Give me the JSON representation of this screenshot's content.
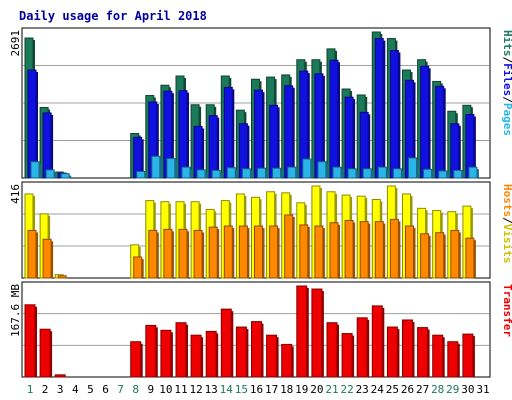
{
  "chart_data": {
    "type": "bar",
    "title": "Daily usage for April 2018",
    "categories": [
      "1",
      "2",
      "3",
      "4",
      "5",
      "6",
      "7",
      "8",
      "9",
      "10",
      "11",
      "12",
      "13",
      "14",
      "15",
      "16",
      "17",
      "18",
      "19",
      "20",
      "21",
      "22",
      "23",
      "24",
      "25",
      "26",
      "27",
      "28",
      "29",
      "30",
      "31"
    ],
    "weekend_days": [
      "1",
      "7",
      "8",
      "14",
      "15",
      "21",
      "22",
      "28",
      "29"
    ],
    "panels": {
      "hits_files_pages": {
        "max_label": "2691",
        "ylim": [
          0,
          2691
        ],
        "series": [
          {
            "name": "Hits",
            "color": "#1b7a58",
            "values": [
              2580,
              1300,
              110,
              0,
              0,
              0,
              0,
              820,
              1520,
              1710,
              1880,
              1350,
              1350,
              1880,
              1250,
              1820,
              1860,
              1900,
              2180,
              2180,
              2380,
              1640,
              1530,
              2691,
              2570,
              1990,
              2180,
              1780,
              1230,
              1340,
              0
            ]
          },
          {
            "name": "Files",
            "color": "#1010e0",
            "values": [
              1990,
              1200,
              90,
              0,
              0,
              0,
              0,
              750,
              1400,
              1600,
              1610,
              950,
              1150,
              1670,
              1000,
              1620,
              1340,
              1700,
              1970,
              1920,
              2170,
              1490,
              1210,
              2570,
              2350,
              1800,
              2060,
              1690,
              1000,
              1170,
              0
            ]
          },
          {
            "name": "Pages",
            "color": "#2ab4e8",
            "values": [
              300,
              150,
              80,
              0,
              0,
              0,
              0,
              120,
              400,
              360,
              200,
              150,
              140,
              190,
              170,
              180,
              180,
              200,
              350,
              300,
              200,
              170,
              170,
              200,
              170,
              370,
              160,
              130,
              140,
              200,
              0
            ]
          }
        ],
        "side_label": [
          "Hits",
          "Files",
          "Pages"
        ]
      },
      "hosts_visits": {
        "max_label": "416",
        "ylim": [
          0,
          416
        ],
        "series": [
          {
            "name": "Visits",
            "color": "#ffff00",
            "values": [
              380,
              290,
              15,
              0,
              0,
              0,
              0,
              150,
              350,
              345,
              345,
              345,
              310,
              350,
              380,
              365,
              390,
              385,
              340,
              416,
              390,
              375,
              370,
              355,
              416,
              380,
              315,
              305,
              300,
              325,
              0
            ]
          },
          {
            "name": "Hosts",
            "color": "#ff8800",
            "values": [
              215,
              175,
              10,
              0,
              0,
              0,
              0,
              95,
              215,
              220,
              220,
              215,
              230,
              235,
              235,
              235,
              235,
              285,
              240,
              235,
              250,
              260,
              255,
              255,
              265,
              235,
              200,
              205,
              215,
              180,
              0
            ]
          }
        ],
        "side_label": [
          "Hosts",
          "Visits"
        ]
      },
      "transfer": {
        "max_label": "167.6 MB",
        "ylim": [
          0,
          167.6
        ],
        "series": [
          {
            "name": "Transfer",
            "color": "#ee0000",
            "values": [
              133,
              88,
              4,
              0,
              0,
              0,
              0,
              65,
              95,
              86,
              100,
              77,
              84,
              125,
              92,
              102,
              77,
              60,
              167.6,
              162,
              100,
              80,
              109,
              131,
              92,
              105,
              91,
              77,
              65,
              79,
              0
            ]
          }
        ],
        "side_label": [
          "Transfer"
        ]
      }
    }
  }
}
